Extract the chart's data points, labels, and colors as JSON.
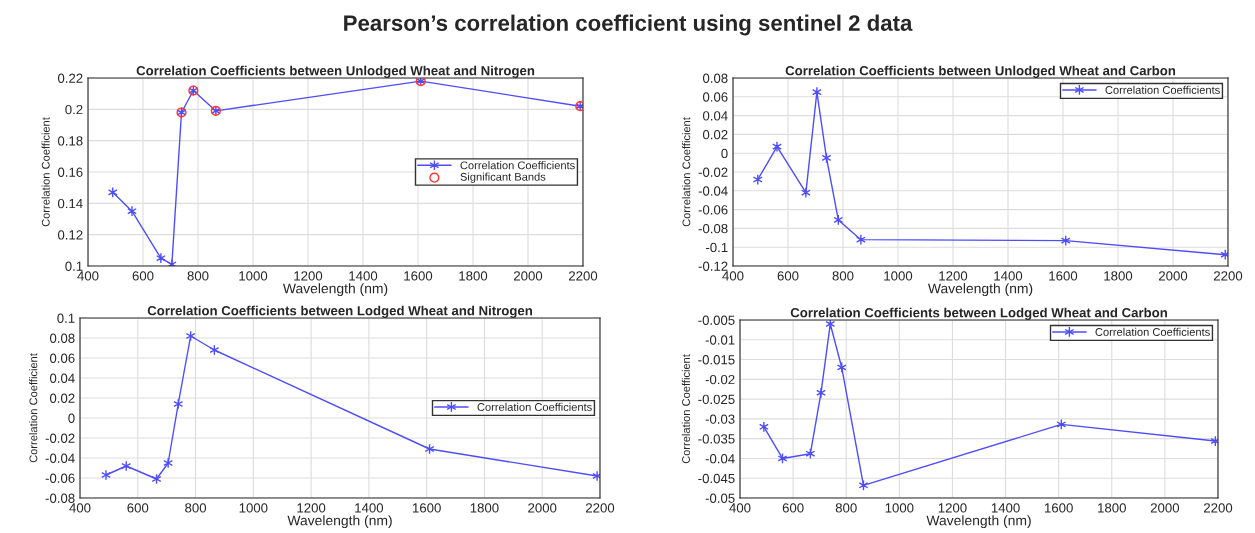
{
  "chart_data": [
    {
      "type": "line",
      "title": "Correlation Coefficients between Unlodged Wheat and Nitrogen",
      "xlabel": "Wavelength (nm)",
      "ylabel": "Correlation Coefficient",
      "annotations": [
        "Pearson’s correlation coefficient using sentinel 2 data"
      ],
      "x": [
        490,
        560,
        665,
        705,
        740,
        783,
        865,
        1610,
        2190
      ],
      "series": [
        {
          "name": "Correlation Coefficients",
          "color": "#4d4dff",
          "marker": "cross",
          "values": [
            0.147,
            0.135,
            0.105,
            0.101,
            0.198,
            0.212,
            0.199,
            0.218,
            0.202
          ]
        },
        {
          "name": "Significant Bands",
          "type": "scatter",
          "color": "#ff3333",
          "marker": "circle",
          "x": [
            740,
            783,
            865,
            1610,
            2190
          ],
          "values": [
            0.198,
            0.212,
            0.199,
            0.218,
            0.202
          ]
        }
      ],
      "xlim": [
        400,
        2200
      ],
      "xticks": [
        400,
        600,
        800,
        1000,
        1200,
        1400,
        1600,
        1800,
        2000,
        2200
      ],
      "ylim": [
        0.1,
        0.22
      ],
      "yticks": [
        0.1,
        0.12,
        0.14,
        0.16,
        0.18,
        0.2,
        0.22
      ],
      "grid": true,
      "legend": "right"
    },
    {
      "type": "line",
      "title": "Correlation Coefficients between Unlodged Wheat and Carbon",
      "xlabel": "Wavelength (nm)",
      "ylabel": "Correlation Coefficient",
      "x": [
        490,
        560,
        665,
        705,
        740,
        783,
        865,
        1610,
        2190
      ],
      "series": [
        {
          "name": "Correlation Coefficients",
          "color": "#4d4dff",
          "marker": "cross",
          "values": [
            -0.028,
            0.007,
            -0.042,
            0.065,
            -0.005,
            -0.071,
            -0.092,
            -0.093,
            -0.108
          ]
        }
      ],
      "xlim": [
        400,
        2200
      ],
      "xticks": [
        400,
        600,
        800,
        1000,
        1200,
        1400,
        1600,
        1800,
        2000,
        2200
      ],
      "ylim": [
        -0.12,
        0.08
      ],
      "yticks": [
        -0.12,
        -0.1,
        -0.08,
        -0.06,
        -0.04,
        -0.02,
        0,
        0.02,
        0.04,
        0.06,
        0.08
      ],
      "grid": true,
      "legend": "top right"
    },
    {
      "type": "line",
      "title": "Correlation Coefficients between Lodged Wheat and Nitrogen",
      "xlabel": "Wavelength (nm)",
      "ylabel": "Correlation Coefficient",
      "x": [
        490,
        560,
        665,
        705,
        740,
        783,
        865,
        1610,
        2190
      ],
      "series": [
        {
          "name": "Correlation Coefficients",
          "color": "#4d4dff",
          "marker": "cross",
          "values": [
            -0.057,
            -0.048,
            -0.061,
            -0.045,
            0.014,
            0.082,
            0.068,
            -0.031,
            -0.058
          ]
        }
      ],
      "xlim": [
        400,
        2200
      ],
      "xticks": [
        400,
        600,
        800,
        1000,
        1200,
        1400,
        1600,
        1800,
        2000,
        2200
      ],
      "ylim": [
        -0.08,
        0.1
      ],
      "yticks": [
        -0.08,
        -0.06,
        -0.04,
        -0.02,
        0,
        0.02,
        0.04,
        0.06,
        0.08,
        0.1
      ],
      "grid": true,
      "legend": "right"
    },
    {
      "type": "line",
      "title": "Correlation Coefficients between Lodged Wheat and Carbon",
      "xlabel": "Wavelength (nm)",
      "ylabel": "Correlation Coefficient",
      "x": [
        490,
        560,
        665,
        705,
        740,
        783,
        865,
        1610,
        2190
      ],
      "series": [
        {
          "name": "Correlation Coefficients",
          "color": "#4d4dff",
          "marker": "cross",
          "values": [
            -0.032,
            -0.04,
            -0.0388,
            -0.0234,
            -0.006,
            -0.017,
            -0.0468,
            -0.0314,
            -0.0356
          ]
        }
      ],
      "xlim": [
        400,
        2200
      ],
      "xticks": [
        400,
        600,
        800,
        1000,
        1200,
        1400,
        1600,
        1800,
        2000,
        2200
      ],
      "ylim": [
        -0.05,
        -0.005
      ],
      "yticks": [
        -0.05,
        -0.045,
        -0.04,
        -0.035,
        -0.03,
        -0.025,
        -0.02,
        -0.015,
        -0.01,
        -0.005
      ],
      "grid": true,
      "legend": "top right"
    }
  ]
}
